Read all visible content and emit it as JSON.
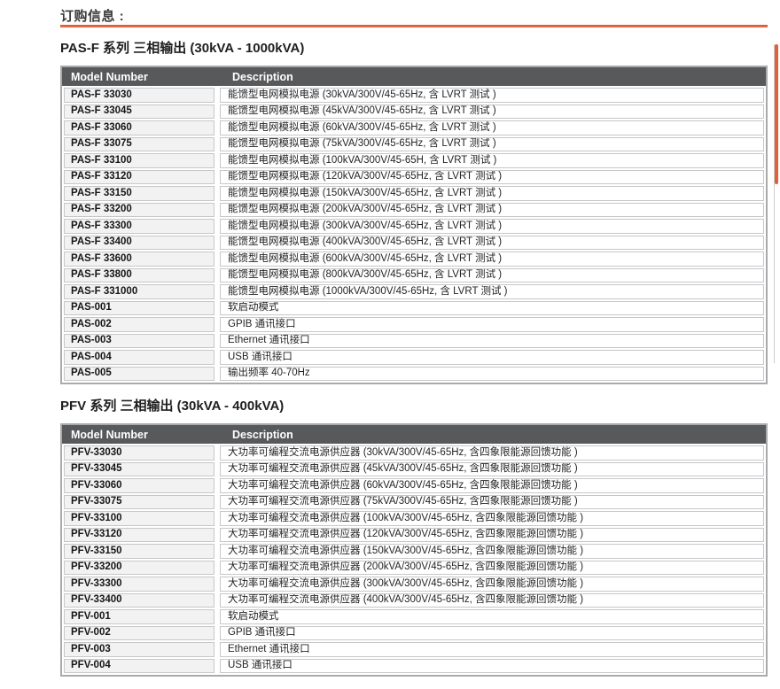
{
  "page": {
    "title": "订购信息 :"
  },
  "colors": {
    "accent_orange": "#E0603A",
    "table_header_bg": "#58595B",
    "model_cell_bg": "#F2F2F3",
    "cell_border": "#C6C7C9",
    "table_outer_border": "#A8AAAD",
    "scrollbar_thumb": "#E0603A"
  },
  "sections": [
    {
      "heading": "PAS-F 系列 三相输出 (30kVA - 1000kVA)",
      "columns": {
        "model": "Model Number",
        "description": "Description"
      },
      "rows": [
        {
          "model": "PAS-F 33030",
          "description": "能馈型电网模拟电源 (30kVA/300V/45-65Hz, 含 LVRT 测试 )"
        },
        {
          "model": "PAS-F 33045",
          "description": "能馈型电网模拟电源 (45kVA/300V/45-65Hz, 含 LVRT 测试 )"
        },
        {
          "model": "PAS-F 33060",
          "description": "能馈型电网模拟电源 (60kVA/300V/45-65Hz, 含 LVRT 测试 )"
        },
        {
          "model": "PAS-F 33075",
          "description": "能馈型电网模拟电源 (75kVA/300V/45-65Hz, 含 LVRT 测试 )"
        },
        {
          "model": "PAS-F 33100",
          "description": "能馈型电网模拟电源 (100kVA/300V/45-65H, 含 LVRT 测试 )"
        },
        {
          "model": "PAS-F 33120",
          "description": "能馈型电网模拟电源 (120kVA/300V/45-65Hz, 含 LVRT 测试 )"
        },
        {
          "model": "PAS-F 33150",
          "description": "能馈型电网模拟电源 (150kVA/300V/45-65Hz, 含 LVRT 测试 )"
        },
        {
          "model": "PAS-F 33200",
          "description": "能馈型电网模拟电源 (200kVA/300V/45-65Hz, 含 LVRT 测试 )"
        },
        {
          "model": "PAS-F 33300",
          "description": "能馈型电网模拟电源 (300kVA/300V/45-65Hz, 含 LVRT 测试 )"
        },
        {
          "model": "PAS-F 33400",
          "description": "能馈型电网模拟电源 (400kVA/300V/45-65Hz, 含 LVRT 测试 )"
        },
        {
          "model": "PAS-F 33600",
          "description": "能馈型电网模拟电源 (600kVA/300V/45-65Hz, 含 LVRT 测试 )"
        },
        {
          "model": "PAS-F 33800",
          "description": "能馈型电网模拟电源 (800kVA/300V/45-65Hz, 含 LVRT 测试 )"
        },
        {
          "model": "PAS-F 331000",
          "description": "能馈型电网模拟电源 (1000kVA/300V/45-65Hz, 含 LVRT 测试 )"
        },
        {
          "model": "PAS-001",
          "description": "软启动模式"
        },
        {
          "model": "PAS-002",
          "description": "GPIB 通讯接口"
        },
        {
          "model": "PAS-003",
          "description": "Ethernet 通讯接口"
        },
        {
          "model": "PAS-004",
          "description": "USB 通讯接口"
        },
        {
          "model": "PAS-005",
          "description": "输出频率 40-70Hz"
        }
      ]
    },
    {
      "heading": "PFV 系列 三相输出 (30kVA - 400kVA)",
      "columns": {
        "model": "Model Number",
        "description": "Description"
      },
      "rows": [
        {
          "model": "PFV-33030",
          "description": "大功率可编程交流电源供应器 (30kVA/300V/45-65Hz, 含四象限能源回馈功能 )"
        },
        {
          "model": "PFV-33045",
          "description": "大功率可编程交流电源供应器 (45kVA/300V/45-65Hz, 含四象限能源回馈功能 )"
        },
        {
          "model": "PFV-33060",
          "description": "大功率可编程交流电源供应器 (60kVA/300V/45-65Hz, 含四象限能源回馈功能 )"
        },
        {
          "model": "PFV-33075",
          "description": "大功率可编程交流电源供应器 (75kVA/300V/45-65Hz, 含四象限能源回馈功能 )"
        },
        {
          "model": "PFV-33100",
          "description": "大功率可编程交流电源供应器 (100kVA/300V/45-65Hz, 含四象限能源回馈功能 )"
        },
        {
          "model": "PFV-33120",
          "description": "大功率可编程交流电源供应器 (120kVA/300V/45-65Hz, 含四象限能源回馈功能 )"
        },
        {
          "model": "PFV-33150",
          "description": "大功率可编程交流电源供应器 (150kVA/300V/45-65Hz, 含四象限能源回馈功能 )"
        },
        {
          "model": "PFV-33200",
          "description": "大功率可编程交流电源供应器 (200kVA/300V/45-65Hz, 含四象限能源回馈功能 )"
        },
        {
          "model": "PFV-33300",
          "description": "大功率可编程交流电源供应器 (300kVA/300V/45-65Hz, 含四象限能源回馈功能 )"
        },
        {
          "model": "PFV-33400",
          "description": "大功率可编程交流电源供应器 (400kVA/300V/45-65Hz, 含四象限能源回馈功能 )"
        },
        {
          "model": "PFV-001",
          "description": "软启动模式"
        },
        {
          "model": "PFV-002",
          "description": "GPIB 通讯接口"
        },
        {
          "model": "PFV-003",
          "description": "Ethernet 通讯接口"
        },
        {
          "model": "PFV-004",
          "description": "USB 通讯接口"
        }
      ]
    }
  ]
}
